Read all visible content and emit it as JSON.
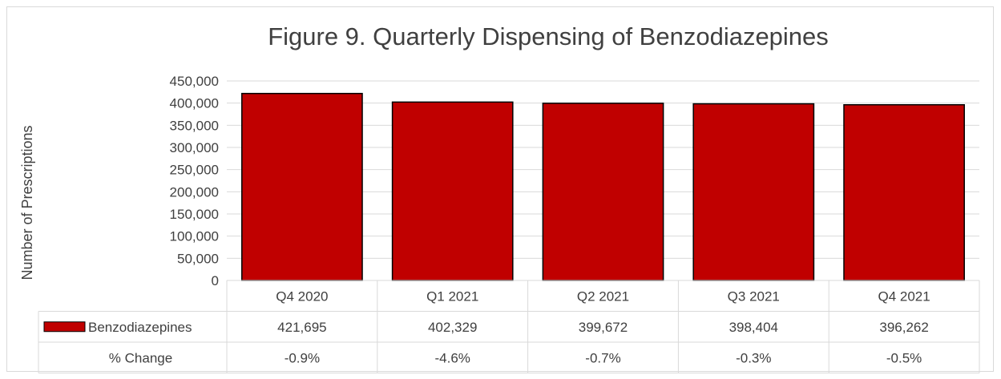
{
  "chart_data": {
    "type": "bar",
    "title": "Figure 9. Quarterly Dispensing of Benzodiazepines",
    "xlabel": "",
    "ylabel": "Number of Prescriptions",
    "categories": [
      "Q4 2020",
      "Q1 2021",
      "Q2 2021",
      "Q3 2021",
      "Q4 2021"
    ],
    "series": [
      {
        "name": "Benzodiazepines",
        "values": [
          421695,
          402329,
          399672,
          398404,
          396262
        ],
        "color": "#c00000"
      }
    ],
    "ylim": [
      0,
      450000
    ],
    "ytick_step": 50000,
    "ytick_labels": [
      "0",
      "50,000",
      "100,000",
      "150,000",
      "200,000",
      "250,000",
      "300,000",
      "350,000",
      "400,000",
      "450,000"
    ],
    "grid": true,
    "data_table": {
      "rows": [
        {
          "label": "Benzodiazepines",
          "legend_key": true,
          "cells": [
            "421,695",
            "402,329",
            "399,672",
            "398,404",
            "396,262"
          ]
        },
        {
          "label": "% Change",
          "legend_key": false,
          "cells": [
            "-0.9%",
            "-4.6%",
            "-0.7%",
            "-0.3%",
            "-0.5%"
          ]
        }
      ]
    }
  }
}
